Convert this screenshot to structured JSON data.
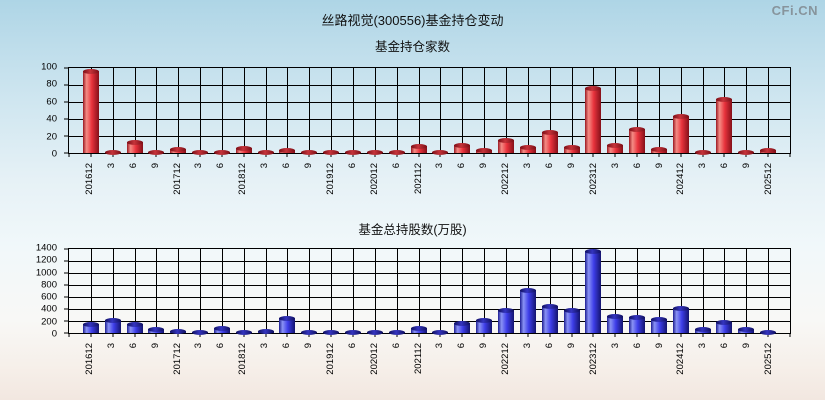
{
  "page": {
    "logo": "CFi.CN",
    "title": "丝路视觉(300556)基金持仓变动"
  },
  "chart_data": [
    {
      "id": "fund-count",
      "type": "bar",
      "title": "基金持仓家数",
      "xlabel": "",
      "ylabel": "",
      "ylim": [
        0,
        100
      ],
      "ytick_step": 20,
      "yticks": [
        0,
        20,
        40,
        60,
        80,
        100
      ],
      "grid": true,
      "legend": "none",
      "n_slots": 33,
      "bar_colors": {
        "main": "#e8323c",
        "light": "#f58d85",
        "dark": "#9a1822",
        "edge": "#841019",
        "cap_main": "#c5333a",
        "cap_dark": "#7a0e16"
      },
      "categories": [
        "201612",
        "3",
        "6",
        "9",
        "201712",
        "3",
        "6",
        "201812",
        "3",
        "6",
        "9",
        "201912",
        "6",
        "202012",
        "6",
        "202112",
        "3",
        "6",
        "9",
        "202212",
        "3",
        "6",
        "9",
        "202312",
        "3",
        "6",
        "9",
        "202412",
        "3",
        "6",
        "9",
        "202512"
      ],
      "values": [
        97,
        1,
        13,
        1,
        5,
        1,
        1,
        6,
        1,
        3,
        1,
        1,
        1,
        1,
        1,
        8,
        1,
        9,
        4,
        15,
        7,
        25,
        7,
        77,
        9,
        28,
        5,
        44,
        1,
        63,
        1,
        3
      ]
    },
    {
      "id": "fund-shares",
      "type": "bar",
      "title": "基金总持股数(万股)",
      "xlabel": "",
      "ylabel": "",
      "ylim": [
        0,
        1400
      ],
      "ytick_step": 200,
      "yticks": [
        0,
        200,
        400,
        600,
        800,
        1000,
        1200,
        1400
      ],
      "grid": true,
      "legend": "none",
      "n_slots": 33,
      "bar_colors": {
        "main": "#3d3de8",
        "light": "#8a93f5",
        "dark": "#1d1d92",
        "edge": "#14146e",
        "cap_main": "#3434bf",
        "cap_dark": "#10105e"
      },
      "categories": [
        "201612",
        "3",
        "6",
        "9",
        "201712",
        "3",
        "6",
        "201812",
        "3",
        "6",
        "9",
        "201912",
        "6",
        "202012",
        "6",
        "202112",
        "3",
        "6",
        "9",
        "202212",
        "3",
        "6",
        "9",
        "202312",
        "3",
        "6",
        "9",
        "202412",
        "3",
        "6",
        "9",
        "202512"
      ],
      "values": [
        150,
        220,
        150,
        70,
        30,
        15,
        80,
        15,
        30,
        245,
        15,
        10,
        10,
        10,
        10,
        85,
        20,
        175,
        225,
        380,
        725,
        450,
        385,
        1370,
        290,
        275,
        230,
        410,
        65,
        180,
        75,
        15
      ]
    }
  ],
  "colors": {
    "grid": "#000000",
    "text": "#111111",
    "logo_text": "#87949c",
    "background_top": "#aed5e6",
    "background_bottom": "#f2e7e0"
  }
}
